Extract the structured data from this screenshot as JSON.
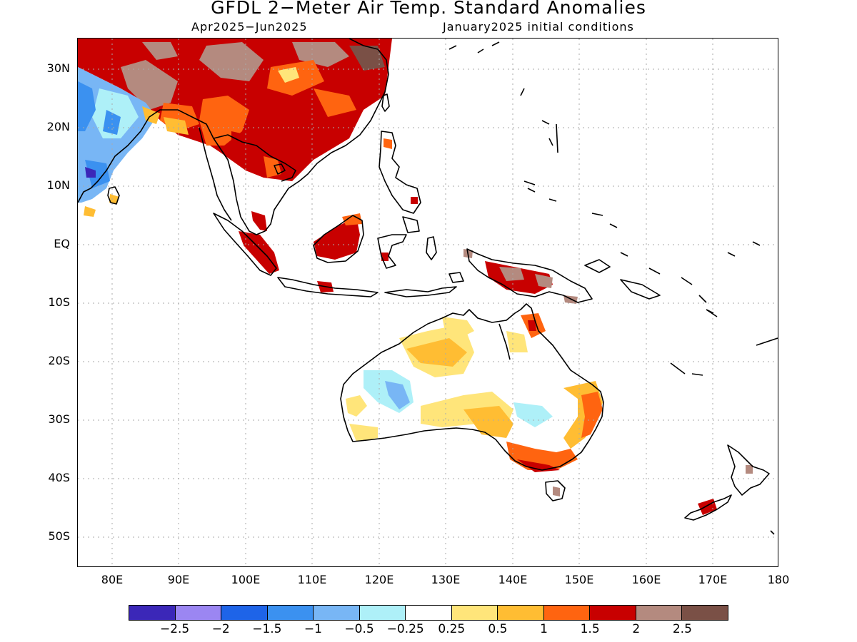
{
  "title": "GFDL 2−Meter Air Temp. Standard Anomalies",
  "subtitle_left": "Apr2025−Jun2025",
  "subtitle_right": "January2025 initial conditions",
  "lat_labels": [
    "30N",
    "20N",
    "10N",
    "EQ",
    "10S",
    "20S",
    "30S",
    "40S",
    "50S"
  ],
  "lon_labels": [
    "80E",
    "90E",
    "100E",
    "110E",
    "120E",
    "130E",
    "140E",
    "150E",
    "160E",
    "170E",
    "180"
  ],
  "legend": {
    "colors": [
      "#3b27b8",
      "#9b86f2",
      "#1e64e8",
      "#3b91f0",
      "#78b6f5",
      "#aef0f8",
      "#ffffff",
      "#ffe57a",
      "#ffbd33",
      "#ff6410",
      "#c80000",
      "#b48a7f",
      "#7a5046"
    ],
    "labels": [
      "−2.5",
      "−2",
      "−1.5",
      "−1",
      "−0.5",
      "−0.25",
      "0.25",
      "0.5",
      "1",
      "1.5",
      "2",
      "2.5"
    ]
  },
  "colors": {
    "cold_1": "#78b6f5",
    "cold_2": "#3b91f0",
    "cool": "#aef0f8",
    "warm_1": "#ffe57a",
    "warm_2": "#ffbd33",
    "warm_3": "#ff6410",
    "hot_1": "#c80000",
    "hot_2": "#b48a7f",
    "hot_3": "#7a5046",
    "coast": "#000000",
    "grid": "#aaaaaa"
  }
}
